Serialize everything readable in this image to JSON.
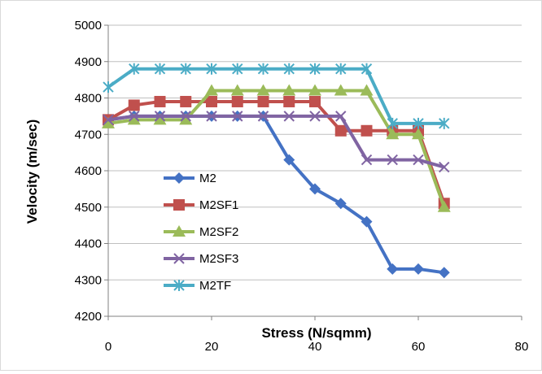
{
  "chart_data": {
    "type": "line",
    "xlabel": "Stress (N/sqmm)",
    "ylabel": "Velocity (m/sec)",
    "xlim": [
      0,
      80
    ],
    "ylim": [
      4200,
      5000
    ],
    "xticks": [
      0,
      20,
      40,
      60,
      80
    ],
    "yticks": [
      4200,
      4300,
      4400,
      4500,
      4600,
      4700,
      4800,
      4900,
      5000
    ],
    "grid": "horizontal",
    "legend": "center-left",
    "series": [
      {
        "name": "M2",
        "color": "#4472C4",
        "marker": "diamond",
        "x": [
          0,
          5,
          10,
          15,
          20,
          25,
          30,
          35,
          40,
          45,
          50,
          55,
          60,
          65
        ],
        "y": [
          4740,
          4750,
          4750,
          4750,
          4750,
          4750,
          4750,
          4630,
          4550,
          4510,
          4460,
          4330,
          4330,
          4320
        ]
      },
      {
        "name": "M2SF1",
        "color": "#C0504D",
        "marker": "square",
        "x": [
          0,
          5,
          10,
          15,
          20,
          25,
          30,
          35,
          40,
          45,
          50,
          55,
          60,
          65
        ],
        "y": [
          4740,
          4780,
          4790,
          4790,
          4790,
          4790,
          4790,
          4790,
          4790,
          4710,
          4710,
          4710,
          4710,
          4510
        ]
      },
      {
        "name": "M2SF2",
        "color": "#9BBB59",
        "marker": "triangle",
        "x": [
          0,
          5,
          10,
          15,
          20,
          25,
          30,
          35,
          40,
          45,
          50,
          55,
          60,
          65
        ],
        "y": [
          4730,
          4740,
          4740,
          4740,
          4820,
          4820,
          4820,
          4820,
          4820,
          4820,
          4820,
          4700,
          4700,
          4500
        ]
      },
      {
        "name": "M2SF3",
        "color": "#8064A2",
        "marker": "x",
        "x": [
          0,
          5,
          10,
          15,
          20,
          25,
          30,
          35,
          40,
          45,
          50,
          55,
          60,
          65
        ],
        "y": [
          4740,
          4750,
          4750,
          4750,
          4750,
          4750,
          4750,
          4750,
          4750,
          4750,
          4630,
          4630,
          4630,
          4610
        ]
      },
      {
        "name": "M2TF",
        "color": "#4BACC6",
        "marker": "star",
        "x": [
          0,
          5,
          10,
          15,
          20,
          25,
          30,
          35,
          40,
          45,
          50,
          55,
          60,
          65
        ],
        "y": [
          4830,
          4880,
          4880,
          4880,
          4880,
          4880,
          4880,
          4880,
          4880,
          4880,
          4880,
          4730,
          4730,
          4730
        ]
      }
    ]
  }
}
